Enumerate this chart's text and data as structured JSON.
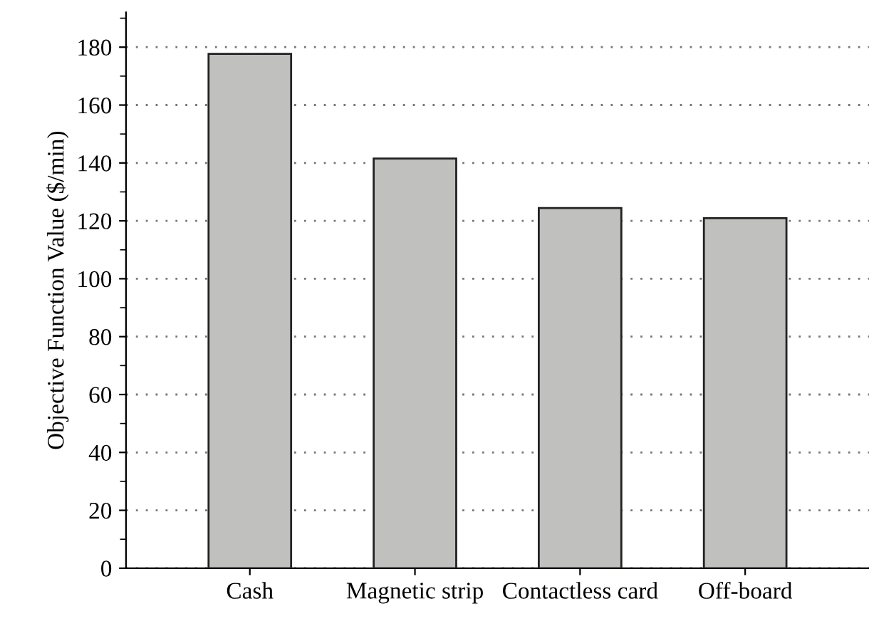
{
  "chart_data": {
    "type": "bar",
    "ylabel": "Objective Function Value ($/min)",
    "categories": [
      "Cash",
      "Magnetic strip",
      "Contactless card",
      "Off-board"
    ],
    "values": [
      177.7,
      141.5,
      124.4,
      120.9
    ],
    "color": "#c0c0bf",
    "ylim": [
      0,
      192
    ],
    "yticks": [
      0,
      20,
      40,
      60,
      80,
      100,
      120,
      140,
      160,
      180
    ],
    "grid": "y",
    "line_style": "dotted"
  }
}
